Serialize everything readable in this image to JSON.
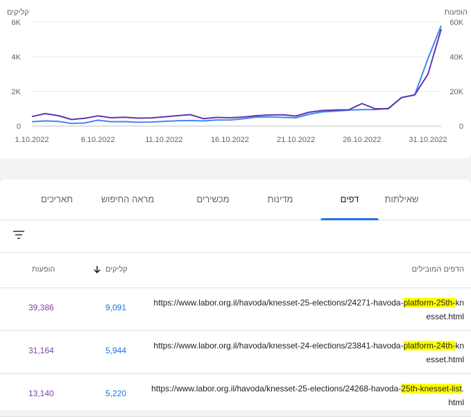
{
  "chart_data": {
    "type": "line",
    "left_axis_label": "קליקים",
    "right_axis_label": "הופעות",
    "left_ticks": [
      "6K",
      "4K",
      "2K",
      "0"
    ],
    "right_ticks": [
      "60K",
      "40K",
      "20K",
      "0"
    ],
    "ylim_clicks": [
      0,
      6000
    ],
    "ylim_impressions": [
      0,
      60000
    ],
    "x_tick_labels": [
      "1.10.2022",
      "6.10.2022",
      "11.10.2022",
      "16.10.2022",
      "21.10.2022",
      "26.10.2022",
      "31.10.2022"
    ],
    "x": [
      "1.10.2022",
      "2.10.2022",
      "3.10.2022",
      "4.10.2022",
      "5.10.2022",
      "6.10.2022",
      "7.10.2022",
      "8.10.2022",
      "9.10.2022",
      "10.10.2022",
      "11.10.2022",
      "12.10.2022",
      "13.10.2022",
      "14.10.2022",
      "15.10.2022",
      "16.10.2022",
      "17.10.2022",
      "18.10.2022",
      "19.10.2022",
      "20.10.2022",
      "21.10.2022",
      "22.10.2022",
      "23.10.2022",
      "24.10.2022",
      "25.10.2022",
      "26.10.2022",
      "27.10.2022",
      "28.10.2022",
      "29.10.2022",
      "30.10.2022",
      "31.10.2022",
      "1.11.2022"
    ],
    "series": [
      {
        "name": "קליקים",
        "axis": "left",
        "color": "#4285f4",
        "values": [
          250,
          300,
          270,
          150,
          180,
          340,
          250,
          260,
          220,
          230,
          270,
          310,
          320,
          300,
          350,
          350,
          420,
          520,
          530,
          500,
          480,
          680,
          820,
          860,
          920,
          950,
          950,
          1020,
          1650,
          1800,
          3900,
          5800
        ]
      },
      {
        "name": "הופעות",
        "axis": "right",
        "color": "#5e35b1",
        "values": [
          5500,
          7200,
          6000,
          3800,
          4500,
          5900,
          4800,
          5100,
          4600,
          4700,
          5300,
          6000,
          6600,
          4300,
          5000,
          4800,
          5200,
          6000,
          6400,
          6500,
          5800,
          8000,
          9000,
          9300,
          9400,
          13000,
          10000,
          10000,
          16500,
          18000,
          30000,
          56000
        ]
      }
    ]
  },
  "tabs": [
    {
      "label": "שאילתות",
      "active": false
    },
    {
      "label": "דפים",
      "active": true
    },
    {
      "label": "מדינות",
      "active": false
    },
    {
      "label": "מכשירים",
      "active": false
    },
    {
      "label": "מראה החיפוש",
      "active": false
    },
    {
      "label": "תאריכים",
      "active": false
    }
  ],
  "table": {
    "headers": {
      "pages": "הדפים המובילים",
      "clicks": "קליקים",
      "impressions": "הופעות"
    },
    "rows": [
      {
        "url_pre": "https://www.labor.org.il/havoda/knesset-25-elections/24271-havoda-",
        "url_hl": "platform-25th-",
        "url_post": "knesset.html",
        "clicks": "9,091",
        "impressions": "39,386"
      },
      {
        "url_pre": "https://www.labor.org.il/havoda/knesset-24-elections/23841-havoda-",
        "url_hl": "platform-24th-",
        "url_post": "knesset.html",
        "clicks": "5,944",
        "impressions": "31,164"
      },
      {
        "url_pre": "https://www.labor.org.il/havoda/knesset-25-elections/24268-havoda-",
        "url_hl": "25th-knesset-list",
        "url_post": ".html",
        "clicks": "5,220",
        "impressions": "13,140"
      }
    ]
  },
  "icons": {
    "filter": "filter-icon",
    "sort": "arrow-down-icon"
  }
}
